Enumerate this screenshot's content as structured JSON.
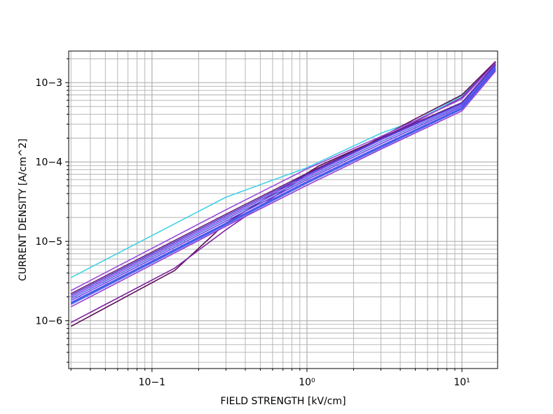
{
  "chart_data": {
    "type": "line",
    "title": "",
    "xlabel": "FIELD STRENGTH [kV/cm]",
    "ylabel": "CURRENT DENSITY [A/cm^2]",
    "xscale": "log",
    "yscale": "log",
    "xlim": [
      0.029,
      17
    ],
    "ylim": [
      2.5e-07,
      0.0025
    ],
    "grid": "major and minor, both axes",
    "legend": "none",
    "x_ticks": [
      {
        "value": 0.1,
        "label": "10−1"
      },
      {
        "value": 1,
        "label": "10⁰"
      },
      {
        "value": 10,
        "label": "10¹"
      }
    ],
    "y_ticks": [
      {
        "value": 1e-06,
        "label": "10−6"
      },
      {
        "value": 1e-05,
        "label": "10−5"
      },
      {
        "value": 0.0001,
        "label": "10−4"
      },
      {
        "value": 0.001,
        "label": "10−3"
      }
    ],
    "series": [
      {
        "color": "#41d1e6",
        "x": [
          0.03,
          0.3,
          1.0,
          3.0,
          5.0,
          10.0,
          16.5
        ],
        "y": [
          3.5e-06,
          3.6e-05,
          8.5e-05,
          0.00023,
          0.00033,
          0.00068,
          0.00175
        ]
      },
      {
        "color": "#5d0f54",
        "x": [
          0.03,
          0.14,
          0.3,
          1.2,
          2.5,
          5.0,
          10.0,
          16.5
        ],
        "y": [
          8.5e-07,
          4.3e-06,
          1.7e-05,
          9e-05,
          0.00017,
          0.00035,
          0.0007,
          0.00185
        ]
      },
      {
        "color": "#7b1fa2",
        "x": [
          0.03,
          0.14,
          0.3,
          1.0,
          3.0,
          5.0,
          10.0,
          16.5
        ],
        "y": [
          9.5e-07,
          4.6e-06,
          1.4e-05,
          7e-05,
          0.0002,
          0.00032,
          0.00065,
          0.0018
        ]
      },
      {
        "color": "#9c4de0",
        "x": [
          0.03,
          0.3,
          1.0,
          3.0,
          10.0,
          16.5
        ],
        "y": [
          2.4e-06,
          2.5e-05,
          8.2e-05,
          0.00021,
          0.00062,
          0.00175
        ]
      },
      {
        "color": "#6a1b7a",
        "x": [
          0.03,
          0.3,
          1.0,
          3.0,
          10.0,
          16.5
        ],
        "y": [
          2.2e-06,
          2.2e-05,
          7.2e-05,
          0.0002,
          0.00056,
          0.0017
        ]
      },
      {
        "color": "#8e44ec",
        "x": [
          0.03,
          0.3,
          1.0,
          3.0,
          10.0,
          16.5
        ],
        "y": [
          2e-06,
          2e-05,
          6.6e-05,
          0.00019,
          0.00054,
          0.00165
        ]
      },
      {
        "color": "#4f6ee6",
        "x": [
          0.03,
          0.3,
          1.0,
          3.0,
          10.0,
          16.5
        ],
        "y": [
          1.9e-06,
          1.9e-05,
          6.3e-05,
          0.00018,
          0.00052,
          0.0016
        ]
      },
      {
        "color": "#7040e8",
        "x": [
          0.03,
          0.3,
          1.0,
          3.0,
          10.0,
          16.5
        ],
        "y": [
          1.8e-06,
          1.8e-05,
          6e-05,
          0.00017,
          0.0005,
          0.00155
        ]
      },
      {
        "color": "#5a5ef0",
        "x": [
          0.03,
          0.3,
          1.0,
          3.0,
          10.0,
          16.5
        ],
        "y": [
          1.7e-06,
          1.7e-05,
          5.7e-05,
          0.00016,
          0.00048,
          0.0015
        ]
      },
      {
        "color": "#6b8cf5",
        "x": [
          0.03,
          0.3,
          1.0,
          3.0,
          10.0,
          16.5
        ],
        "y": [
          1.6e-06,
          1.6e-05,
          5.4e-05,
          0.00015,
          0.00046,
          0.00145
        ]
      },
      {
        "color": "#9b3fd6",
        "x": [
          0.03,
          0.3,
          1.0,
          3.0,
          10.0,
          16.5
        ],
        "y": [
          1.5e-06,
          1.55e-05,
          5.1e-05,
          0.000145,
          0.00044,
          0.0014
        ]
      },
      {
        "color": "#4a3fd0",
        "x": [
          0.03,
          0.3,
          1.0,
          3.0,
          10.0,
          16.5
        ],
        "y": [
          2.1e-06,
          2.1e-05,
          6.9e-05,
          0.000195,
          0.00055,
          0.00168
        ]
      },
      {
        "color": "#3f55e6",
        "x": [
          0.03,
          0.3,
          1.0,
          3.0,
          10.0,
          16.5
        ],
        "y": [
          1.65e-06,
          1.65e-05,
          5.5e-05,
          0.000155,
          0.00047,
          0.00148
        ]
      }
    ]
  }
}
